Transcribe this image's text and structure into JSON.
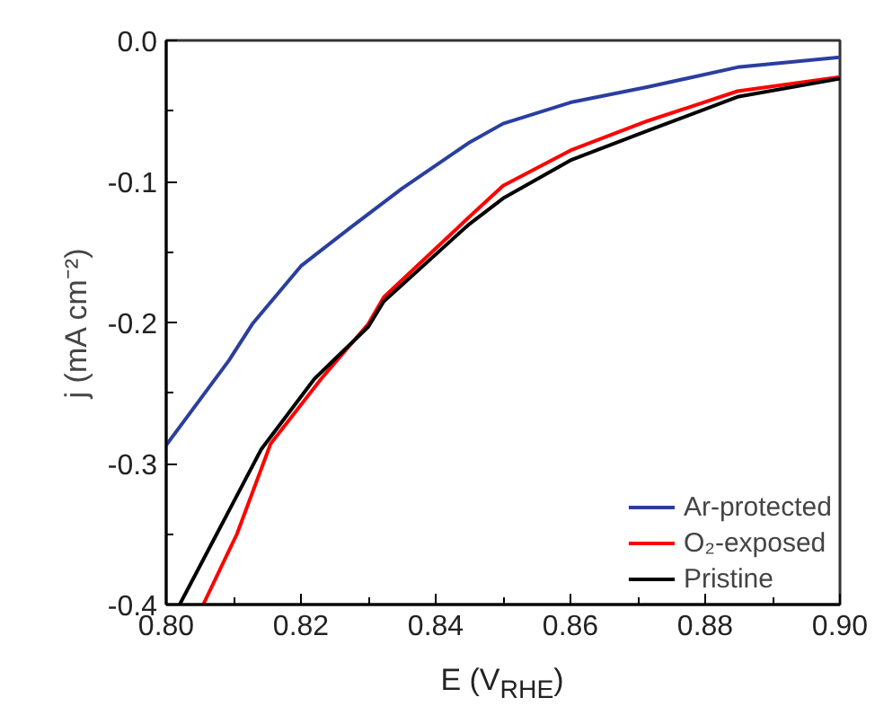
{
  "chart_data": {
    "type": "line",
    "xlabel": "E (V$_{RHE}$)",
    "ylabel": "j (mA cm⁻²)",
    "xlim": [
      0.8,
      0.9
    ],
    "xticks": [
      {
        "value": 0.8,
        "label": "0.80"
      },
      {
        "value": 0.82,
        "label": "0.82"
      },
      {
        "value": 0.84,
        "label": "0.84"
      },
      {
        "value": 0.86,
        "label": "0.86"
      },
      {
        "value": 0.88,
        "label": "0.88"
      },
      {
        "value": 0.9,
        "label": "0.90"
      }
    ],
    "ylim": [
      -0.4,
      0
    ],
    "yticks": [
      {
        "value": -0.4,
        "label": "-0.4"
      },
      {
        "value": -0.3,
        "label": "-0.3"
      },
      {
        "value": -0.2,
        "label": "-0.2"
      },
      {
        "value": -0.1,
        "label": "-0.1"
      },
      {
        "value": 0,
        "label": "0.0"
      }
    ],
    "grid": false,
    "legend": "bottom right",
    "marker": "none",
    "line_style": "solid",
    "series": [
      {
        "name": "Ar-protected",
        "color": "#2b3ea0",
        "x": [
          0.8,
          0.8093,
          0.8128,
          0.82,
          0.827,
          0.835,
          0.8448,
          0.85,
          0.86,
          0.8715,
          0.8848,
          0.9
        ],
        "values": [
          -0.287,
          -0.227,
          -0.201,
          -0.16,
          -0.134,
          -0.105,
          -0.073,
          -0.059,
          -0.044,
          -0.033,
          -0.019,
          -0.012
        ]
      },
      {
        "name": "O₂-exposed",
        "color": "#ff0000",
        "x": [
          0.8055,
          0.8105,
          0.8155,
          0.823,
          0.83,
          0.8323,
          0.8448,
          0.85,
          0.86,
          0.8715,
          0.8848,
          0.9
        ],
        "values": [
          -0.4,
          -0.35,
          -0.286,
          -0.24,
          -0.201,
          -0.182,
          -0.126,
          -0.103,
          -0.078,
          -0.057,
          -0.036,
          -0.026
        ]
      },
      {
        "name": "Pristine",
        "color": "#000000",
        "x": [
          0.802,
          0.8075,
          0.8141,
          0.822,
          0.83,
          0.8323,
          0.8448,
          0.85,
          0.86,
          0.8715,
          0.8848,
          0.9
        ],
        "values": [
          -0.4,
          -0.35,
          -0.29,
          -0.24,
          -0.203,
          -0.185,
          -0.131,
          -0.112,
          -0.085,
          -0.064,
          -0.04,
          -0.027
        ]
      }
    ]
  }
}
